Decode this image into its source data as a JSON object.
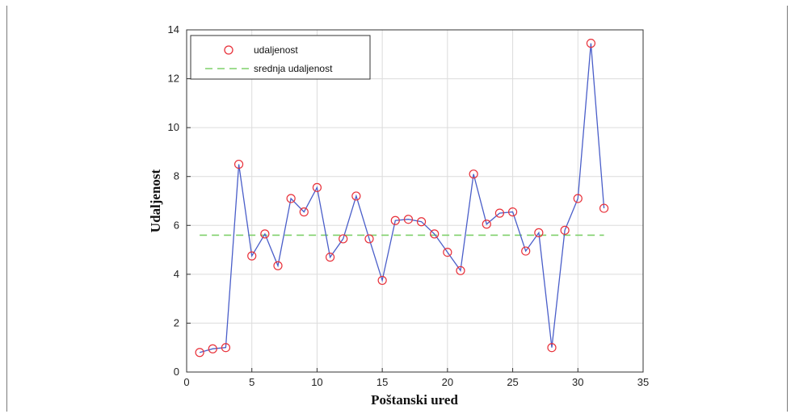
{
  "chart_data": {
    "type": "line",
    "xlabel": "Poštanski ured",
    "ylabel": "Udaljenost",
    "xlim": [
      0,
      35
    ],
    "ylim": [
      0,
      14
    ],
    "xticks": [
      0,
      5,
      10,
      15,
      20,
      25,
      30,
      35
    ],
    "yticks": [
      0,
      2,
      4,
      6,
      8,
      10,
      12,
      14
    ],
    "grid": true,
    "legend_position": "top-left",
    "series": [
      {
        "name": "udaljenost",
        "marker": "circle",
        "marker_color": "#e8313a",
        "line_color": "#4a5ec9",
        "x": [
          1,
          2,
          3,
          4,
          5,
          6,
          7,
          8,
          9,
          10,
          11,
          12,
          13,
          14,
          15,
          16,
          17,
          18,
          19,
          20,
          21,
          22,
          23,
          24,
          25,
          26,
          27,
          28,
          29,
          30,
          31,
          32
        ],
        "values": [
          0.8,
          0.95,
          1.0,
          8.5,
          4.75,
          5.65,
          4.35,
          7.1,
          6.55,
          7.55,
          4.7,
          5.45,
          7.2,
          5.45,
          3.75,
          6.2,
          6.25,
          6.15,
          5.65,
          4.9,
          4.15,
          8.1,
          6.05,
          6.5,
          6.55,
          4.95,
          5.7,
          1.0,
          5.8,
          7.1,
          13.45,
          6.7
        ]
      },
      {
        "name": "srednja udaljenost",
        "style": "dashed",
        "line_color": "#7ed06a",
        "x": [
          1,
          32
        ],
        "values": [
          5.6,
          5.6
        ]
      }
    ]
  }
}
